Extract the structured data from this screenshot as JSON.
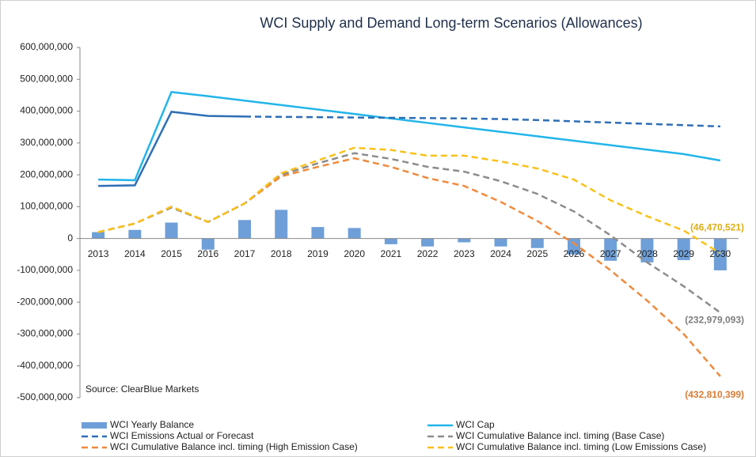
{
  "chart_data": {
    "type": "combo",
    "title": "WCI Supply and Demand Long-term Scenarios (Allowances)",
    "annotation": "Source: ClearBlue Markets",
    "categories": [
      "2013",
      "2014",
      "2015",
      "2016",
      "2017",
      "2018",
      "2019",
      "2020",
      "2021",
      "2022",
      "2023",
      "2024",
      "2025",
      "2026",
      "2027",
      "2028",
      "2029",
      "2030"
    ],
    "ylim": [
      -500000000,
      600000000
    ],
    "yticks": [
      {
        "value": 600000000,
        "label": "600,000,000"
      },
      {
        "value": 500000000,
        "label": "500,000,000"
      },
      {
        "value": 400000000,
        "label": "400,000,000"
      },
      {
        "value": 300000000,
        "label": "300,000,000"
      },
      {
        "value": 200000000,
        "label": "200,000,000"
      },
      {
        "value": 100000000,
        "label": "100,000,000"
      },
      0,
      {
        "value": -100000000,
        "label": "-100,000,000"
      },
      {
        "value": -200000000,
        "label": "-200,000,000"
      },
      {
        "value": -300000000,
        "label": "-300,000,000"
      },
      {
        "value": -400000000,
        "label": "-400,000,000"
      },
      {
        "value": -500000000,
        "label": "-500,000,000"
      }
    ],
    "series": [
      {
        "name": "WCI Yearly Balance",
        "style": "bar",
        "color": "#6f9fd8",
        "values": [
          20000000,
          27000000,
          50000000,
          -35000000,
          58000000,
          90000000,
          36000000,
          33000000,
          -18000000,
          -25000000,
          -12000000,
          -25000000,
          -30000000,
          -50000000,
          -70000000,
          -75000000,
          -68000000,
          -100000000
        ]
      },
      {
        "name": "WCI Cap",
        "style": "solid",
        "color": "#22b5ea",
        "values": [
          185000000,
          183000000,
          460000000,
          447000000,
          433000000,
          419000000,
          405000000,
          391000000,
          377000000,
          363000000,
          349000000,
          335000000,
          321000000,
          307000000,
          293000000,
          279000000,
          265000000,
          245000000
        ]
      },
      {
        "name": "WCI Emissions Actual or Forecast",
        "style": "dashed",
        "solid_until": "2017",
        "color": "#2e6eb5",
        "values": [
          165000000,
          167000000,
          398000000,
          385000000,
          383000000,
          382000000,
          381000000,
          380000000,
          379000000,
          378000000,
          377000000,
          375000000,
          372000000,
          368000000,
          364000000,
          360000000,
          356000000,
          352000000
        ]
      },
      {
        "name": "WCI Cumulative Balance incl. timing (Base Case)",
        "style": "dashed",
        "color": "#8c8c8c",
        "values": [
          20000000,
          47000000,
          97000000,
          52000000,
          110000000,
          200000000,
          236000000,
          268000000,
          250000000,
          225000000,
          210000000,
          180000000,
          140000000,
          85000000,
          10000000,
          -75000000,
          -150000000,
          -232979093
        ],
        "value_labels": [
          null,
          null,
          null,
          null,
          null,
          null,
          null,
          null,
          null,
          null,
          null,
          null,
          null,
          null,
          null,
          null,
          null,
          "(232,979,093)"
        ]
      },
      {
        "name": "WCI Cumulative Balance incl. timing (High Emission Case)",
        "style": "dashed",
        "color": "#f08a3c",
        "values": [
          20000000,
          47000000,
          100000000,
          52000000,
          110000000,
          195000000,
          225000000,
          252000000,
          225000000,
          190000000,
          165000000,
          115000000,
          55000000,
          -15000000,
          -100000000,
          -195000000,
          -300000000,
          -432810399
        ],
        "value_labels": [
          null,
          null,
          null,
          null,
          null,
          null,
          null,
          null,
          null,
          null,
          null,
          null,
          null,
          null,
          null,
          null,
          null,
          "(432,810,399)"
        ]
      },
      {
        "name": "WCI Cumulative Balance incl. timing (Low Emissions Case)",
        "style": "dashed",
        "color": "#f9c11a",
        "values": [
          20000000,
          47000000,
          100000000,
          52000000,
          110000000,
          205000000,
          245000000,
          285000000,
          278000000,
          260000000,
          260000000,
          242000000,
          220000000,
          185000000,
          120000000,
          70000000,
          25000000,
          -46470521
        ],
        "value_labels": [
          null,
          null,
          null,
          null,
          null,
          null,
          null,
          null,
          null,
          null,
          null,
          null,
          null,
          null,
          null,
          null,
          null,
          "(46,470,521)"
        ]
      }
    ]
  }
}
